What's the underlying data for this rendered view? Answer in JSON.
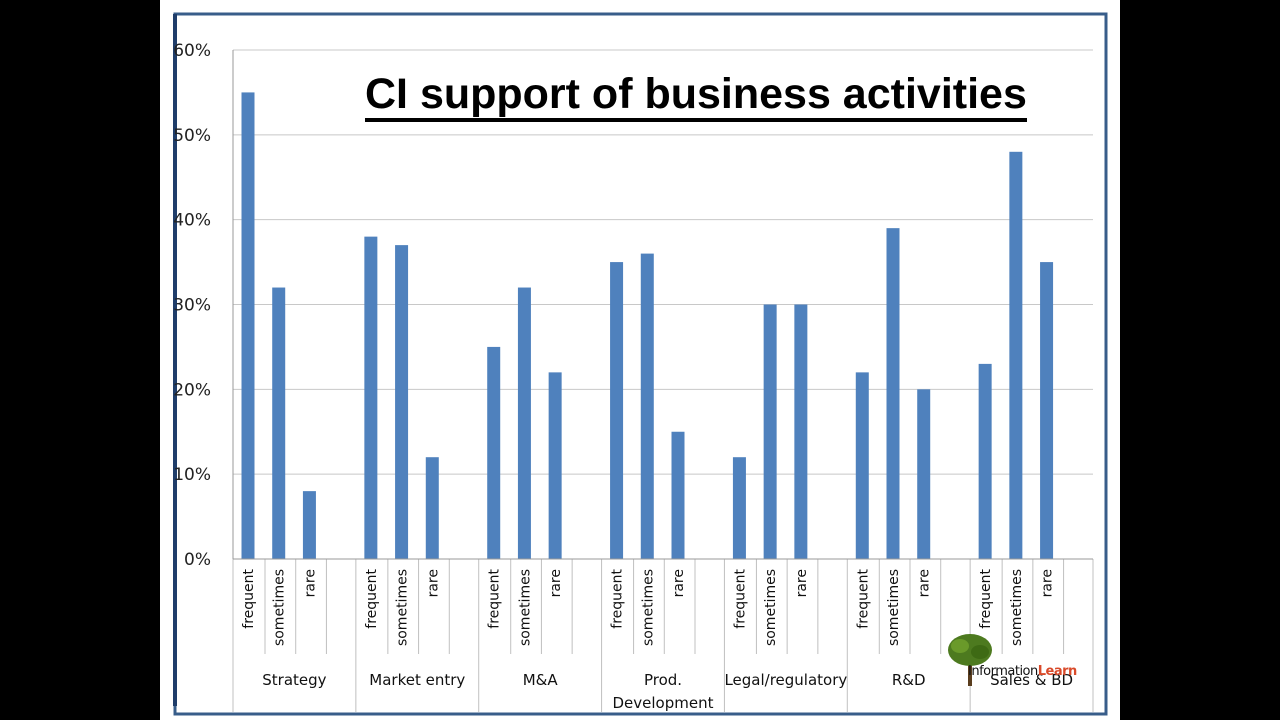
{
  "chart_data": {
    "type": "bar",
    "title": "CI support of business activities",
    "ylim": [
      0,
      0.6
    ],
    "yticks": [
      "0%",
      "10%",
      "20%",
      "30%",
      "40%",
      "50%",
      "60%"
    ],
    "grid": true,
    "groups": [
      "Strategy",
      "Market entry",
      "M&A",
      "Prod. Development",
      "Legal/regulatory",
      "R&D",
      "Sales & BD"
    ],
    "subcategories": [
      "frequent",
      "sometimes",
      "rare"
    ],
    "values": [
      [
        0.55,
        0.32,
        0.08
      ],
      [
        0.38,
        0.37,
        0.12
      ],
      [
        0.25,
        0.32,
        0.22
      ],
      [
        0.35,
        0.36,
        0.15
      ],
      [
        0.12,
        0.3,
        0.3
      ],
      [
        0.22,
        0.39,
        0.2
      ],
      [
        0.23,
        0.48,
        0.35
      ]
    ],
    "bar_color": "#4f81bd"
  },
  "logo": {
    "prefix": "Information",
    "accent": "Learn",
    "icon": "tree-icon"
  },
  "colors": {
    "background": "#000000",
    "slide": "#ffffff",
    "frame": "#385d8a",
    "grid": "#c8c8c8"
  }
}
